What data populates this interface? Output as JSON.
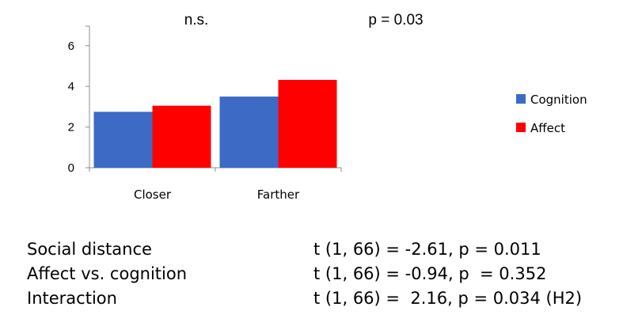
{
  "chart_data": {
    "type": "bar",
    "categories": [
      "Closer",
      "Farther"
    ],
    "series": [
      {
        "name": "Cognition",
        "values": [
          2.75,
          3.5
        ]
      },
      {
        "name": "Affect",
        "values": [
          3.05,
          4.32
        ]
      }
    ],
    "ylim": [
      0,
      7
    ],
    "yticks": [
      "0",
      "2",
      "4",
      "6"
    ],
    "annotations": [
      "n.s.",
      "p = 0.03"
    ],
    "legend_position": "right",
    "grid": false
  },
  "colors": {
    "Cognition": "#3d6ac5",
    "Affect": "#ff0000"
  },
  "stats": [
    {
      "label": "Social distance",
      "value": "t (1, 66) = -2.61, p = 0.011"
    },
    {
      "label": "Affect vs. cognition",
      "value": "t (1, 66) = -0.94, p  = 0.352"
    },
    {
      "label": "Interaction",
      "value": "t (1, 66) =  2.16, p = 0.034 (H2)"
    }
  ]
}
